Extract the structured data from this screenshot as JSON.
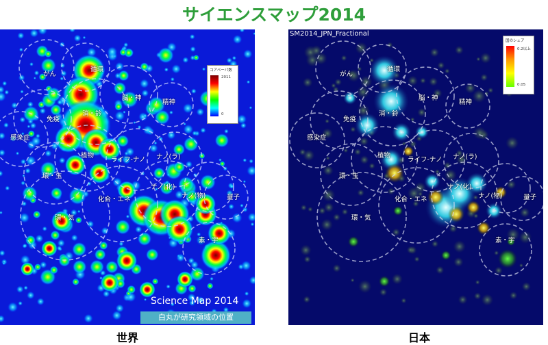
{
  "title": "サイエンスマップ2014",
  "world": {
    "caption": "世界",
    "legend_title": "コアペーパ数",
    "legend_max": "2011",
    "legend_min": "0",
    "watermark": "Science Map 2014",
    "note": "白丸が研究領域の位置",
    "labels": [
      "がん",
      "循環",
      "脳・神",
      "精神",
      "免疫",
      "消・鈴",
      "感染症",
      "植物",
      "ライフ-ナノ",
      "ナノ(ラ)",
      "環・生",
      "ナノ(化)",
      "ナノ(物)",
      "量子",
      "化合・エネ",
      "環・気",
      "素・宇"
    ]
  },
  "japan": {
    "caption": "日本",
    "header": "SM2014_JPN_Fractional",
    "legend_title": "国のシェア",
    "legend_max": "0.2以上",
    "legend_min": "0.05",
    "labels": [
      "がん",
      "循環",
      "脳・神",
      "精神",
      "免疫",
      "消・鈴",
      "感染症",
      "植物",
      "ライフ-ナノ",
      "ナノ(ラ)",
      "環・生",
      "ナノ(化)",
      "ナノ(物)",
      "量子",
      "化合・エネ",
      "環・気",
      "素・宇"
    ]
  }
}
